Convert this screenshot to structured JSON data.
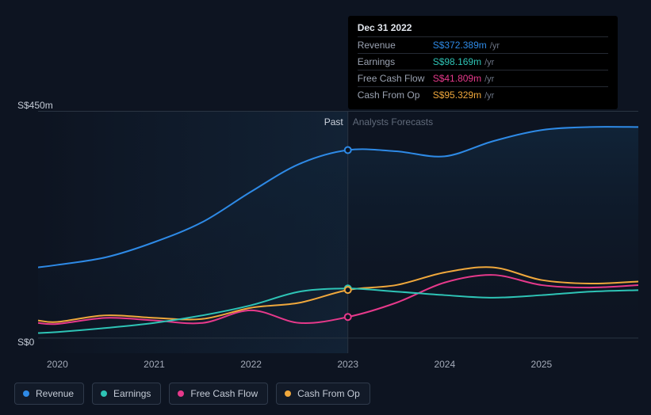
{
  "chart": {
    "type": "line",
    "background_color": "#0d1421",
    "ylim": [
      -30,
      450
    ],
    "ytick_labels": [
      "S$450m",
      "S$0"
    ],
    "ytick_values": [
      450,
      0
    ],
    "ylabel_fontsize": 12,
    "ylabel_color": "#c4cbd6",
    "topline_color": "#2a3442",
    "baseline_color": "#2a3442",
    "x_years": [
      2020,
      2021,
      2022,
      2023,
      2024,
      2025
    ],
    "x_range": [
      2019.8,
      2026.0
    ],
    "divider_year": 2023,
    "past_label": "Past",
    "forecast_label": "Analysts Forecasts",
    "past_label_color": "#cdd3dd",
    "forecast_label_color": "#606a7a",
    "past_gradient_from": "#122235",
    "past_gradient_to": "#0d1421",
    "area_fill_top": "#11253a",
    "area_fill_bottom": "#0d1421",
    "line_width": 2,
    "marker_radius": 4,
    "marker_fill": "#0d1421",
    "markers": [
      {
        "series": "revenue",
        "x": 2023,
        "y": 372.389
      },
      {
        "series": "earnings",
        "x": 2023,
        "y": 98.169
      },
      {
        "series": "cash_from_op",
        "x": 2023,
        "y": 95.329
      },
      {
        "series": "fcf",
        "x": 2023,
        "y": 41.809
      }
    ],
    "series": {
      "revenue": {
        "label": "Revenue",
        "color": "#2e8ae6",
        "points": [
          [
            2019.8,
            140
          ],
          [
            2020.0,
            145
          ],
          [
            2020.5,
            160
          ],
          [
            2021.0,
            190
          ],
          [
            2021.5,
            230
          ],
          [
            2022.0,
            290
          ],
          [
            2022.5,
            345
          ],
          [
            2023.0,
            372.389
          ],
          [
            2023.5,
            370
          ],
          [
            2024.0,
            360
          ],
          [
            2024.5,
            390
          ],
          [
            2025.0,
            412
          ],
          [
            2025.5,
            418
          ],
          [
            2026.0,
            418
          ]
        ]
      },
      "earnings": {
        "label": "Earnings",
        "color": "#2ec4b6",
        "points": [
          [
            2019.8,
            10
          ],
          [
            2020.0,
            12
          ],
          [
            2020.5,
            20
          ],
          [
            2021.0,
            30
          ],
          [
            2021.5,
            45
          ],
          [
            2022.0,
            65
          ],
          [
            2022.5,
            92
          ],
          [
            2023.0,
            98.169
          ],
          [
            2023.5,
            92
          ],
          [
            2024.0,
            85
          ],
          [
            2024.5,
            80
          ],
          [
            2025.0,
            85
          ],
          [
            2025.5,
            92
          ],
          [
            2026.0,
            95
          ]
        ]
      },
      "fcf": {
        "label": "Free Cash Flow",
        "color": "#e6398b",
        "points": [
          [
            2019.8,
            30
          ],
          [
            2020.0,
            28
          ],
          [
            2020.5,
            40
          ],
          [
            2021.0,
            35
          ],
          [
            2021.5,
            30
          ],
          [
            2022.0,
            55
          ],
          [
            2022.5,
            30
          ],
          [
            2023.0,
            41.809
          ],
          [
            2023.5,
            70
          ],
          [
            2024.0,
            110
          ],
          [
            2024.5,
            125
          ],
          [
            2025.0,
            105
          ],
          [
            2025.5,
            100
          ],
          [
            2026.0,
            105
          ]
        ]
      },
      "cash_from_op": {
        "label": "Cash From Op",
        "color": "#f0a83c",
        "points": [
          [
            2019.8,
            35
          ],
          [
            2020.0,
            32
          ],
          [
            2020.5,
            45
          ],
          [
            2021.0,
            40
          ],
          [
            2021.5,
            38
          ],
          [
            2022.0,
            60
          ],
          [
            2022.5,
            70
          ],
          [
            2023.0,
            95.329
          ],
          [
            2023.5,
            105
          ],
          [
            2024.0,
            130
          ],
          [
            2024.5,
            140
          ],
          [
            2025.0,
            115
          ],
          [
            2025.5,
            108
          ],
          [
            2026.0,
            112
          ]
        ]
      }
    }
  },
  "tooltip": {
    "title": "Dec 31 2022",
    "unit": "/yr",
    "rows": [
      {
        "label": "Revenue",
        "value": "S$372.389m",
        "color": "#2e8ae6"
      },
      {
        "label": "Earnings",
        "value": "S$98.169m",
        "color": "#2ec4b6"
      },
      {
        "label": "Free Cash Flow",
        "value": "S$41.809m",
        "color": "#e6398b"
      },
      {
        "label": "Cash From Op",
        "value": "S$95.329m",
        "color": "#f0a83c"
      }
    ]
  },
  "legend": {
    "border_color": "#2f3a4b",
    "bg_color": "#121a28",
    "label_color": "#c4cbd6",
    "items": [
      {
        "label": "Revenue",
        "color": "#2e8ae6"
      },
      {
        "label": "Earnings",
        "color": "#2ec4b6"
      },
      {
        "label": "Free Cash Flow",
        "color": "#e6398b"
      },
      {
        "label": "Cash From Op",
        "color": "#f0a83c"
      }
    ]
  }
}
